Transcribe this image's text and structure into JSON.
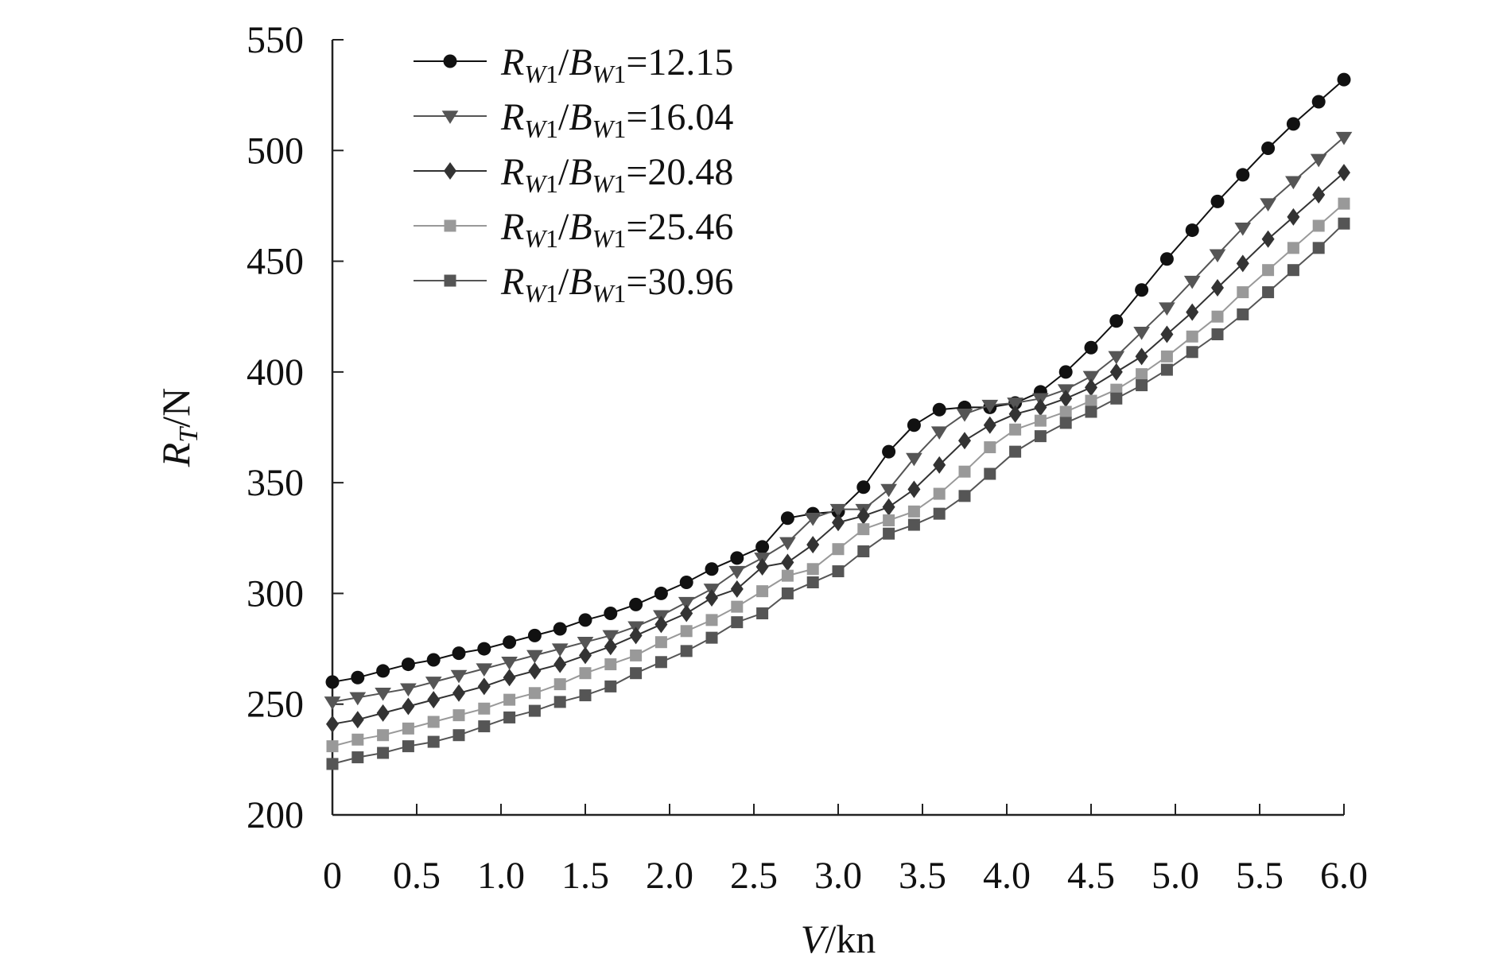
{
  "chart_data": {
    "type": "line",
    "title": "",
    "xlabel": "V/kn",
    "ylabel": "R_T/N",
    "xlim": [
      0,
      6.0
    ],
    "ylim": [
      200,
      550
    ],
    "x_ticks": [
      "0",
      "0.5",
      "1.0",
      "1.5",
      "2.0",
      "2.5",
      "3.0",
      "3.5",
      "4.0",
      "4.5",
      "5.0",
      "5.5",
      "6.0"
    ],
    "y_ticks": [
      "200",
      "250",
      "300",
      "350",
      "400",
      "450",
      "500",
      "550"
    ],
    "grid": false,
    "legend_position": "top-left",
    "x": [
      0,
      0.15,
      0.3,
      0.45,
      0.6,
      0.75,
      0.9,
      1.05,
      1.2,
      1.35,
      1.5,
      1.65,
      1.8,
      1.95,
      2.1,
      2.25,
      2.4,
      2.55,
      2.7,
      2.85,
      3.0,
      3.15,
      3.3,
      3.45,
      3.6,
      3.75,
      3.9,
      4.05,
      4.2,
      4.35,
      4.5,
      4.65,
      4.8,
      4.95,
      5.1,
      5.25,
      5.4,
      5.55,
      5.7,
      5.85,
      6.0
    ],
    "series": [
      {
        "name": "R_W1/B_W1=12.15",
        "marker": "circle",
        "color": "#111111",
        "values": [
          260,
          262,
          265,
          268,
          270,
          273,
          275,
          278,
          281,
          284,
          288,
          291,
          295,
          300,
          305,
          311,
          316,
          321,
          334,
          336,
          337,
          348,
          364,
          376,
          383,
          384,
          384,
          386,
          391,
          400,
          411,
          423,
          437,
          451,
          464,
          477,
          489,
          501,
          512,
          522,
          532
        ]
      },
      {
        "name": "R_W1/B_W1=16.04",
        "marker": "triangle-down",
        "color": "#555555",
        "values": [
          251,
          253,
          255,
          257,
          260,
          263,
          266,
          269,
          272,
          275,
          278,
          281,
          285,
          290,
          296,
          302,
          310,
          316,
          323,
          334,
          338,
          338,
          347,
          361,
          373,
          381,
          385,
          386,
          388,
          392,
          398,
          407,
          418,
          429,
          441,
          453,
          465,
          476,
          486,
          496,
          506
        ]
      },
      {
        "name": "R_W1/B_W1=20.48",
        "marker": "diamond",
        "color": "#333333",
        "values": [
          241,
          243,
          246,
          249,
          252,
          255,
          258,
          262,
          265,
          268,
          272,
          276,
          281,
          286,
          291,
          298,
          302,
          312,
          314,
          322,
          332,
          335,
          339,
          347,
          358,
          369,
          376,
          381,
          384,
          388,
          393,
          400,
          407,
          417,
          427,
          438,
          449,
          460,
          470,
          480,
          490
        ]
      },
      {
        "name": "R_W1/B_W1=25.46",
        "marker": "square",
        "color": "#999999",
        "values": [
          231,
          234,
          236,
          239,
          242,
          245,
          248,
          252,
          255,
          259,
          264,
          268,
          272,
          278,
          283,
          288,
          294,
          301,
          308,
          311,
          320,
          329,
          333,
          337,
          345,
          355,
          366,
          374,
          378,
          382,
          387,
          392,
          399,
          407,
          416,
          425,
          436,
          446,
          456,
          466,
          476
        ]
      },
      {
        "name": "R_W1/B_W1=30.96",
        "marker": "square",
        "color": "#555555",
        "values": [
          223,
          226,
          228,
          231,
          233,
          236,
          240,
          244,
          247,
          251,
          254,
          258,
          264,
          269,
          274,
          280,
          287,
          291,
          300,
          305,
          310,
          319,
          327,
          331,
          336,
          344,
          354,
          364,
          371,
          377,
          382,
          388,
          394,
          401,
          409,
          417,
          426,
          436,
          446,
          456,
          467
        ]
      }
    ]
  }
}
